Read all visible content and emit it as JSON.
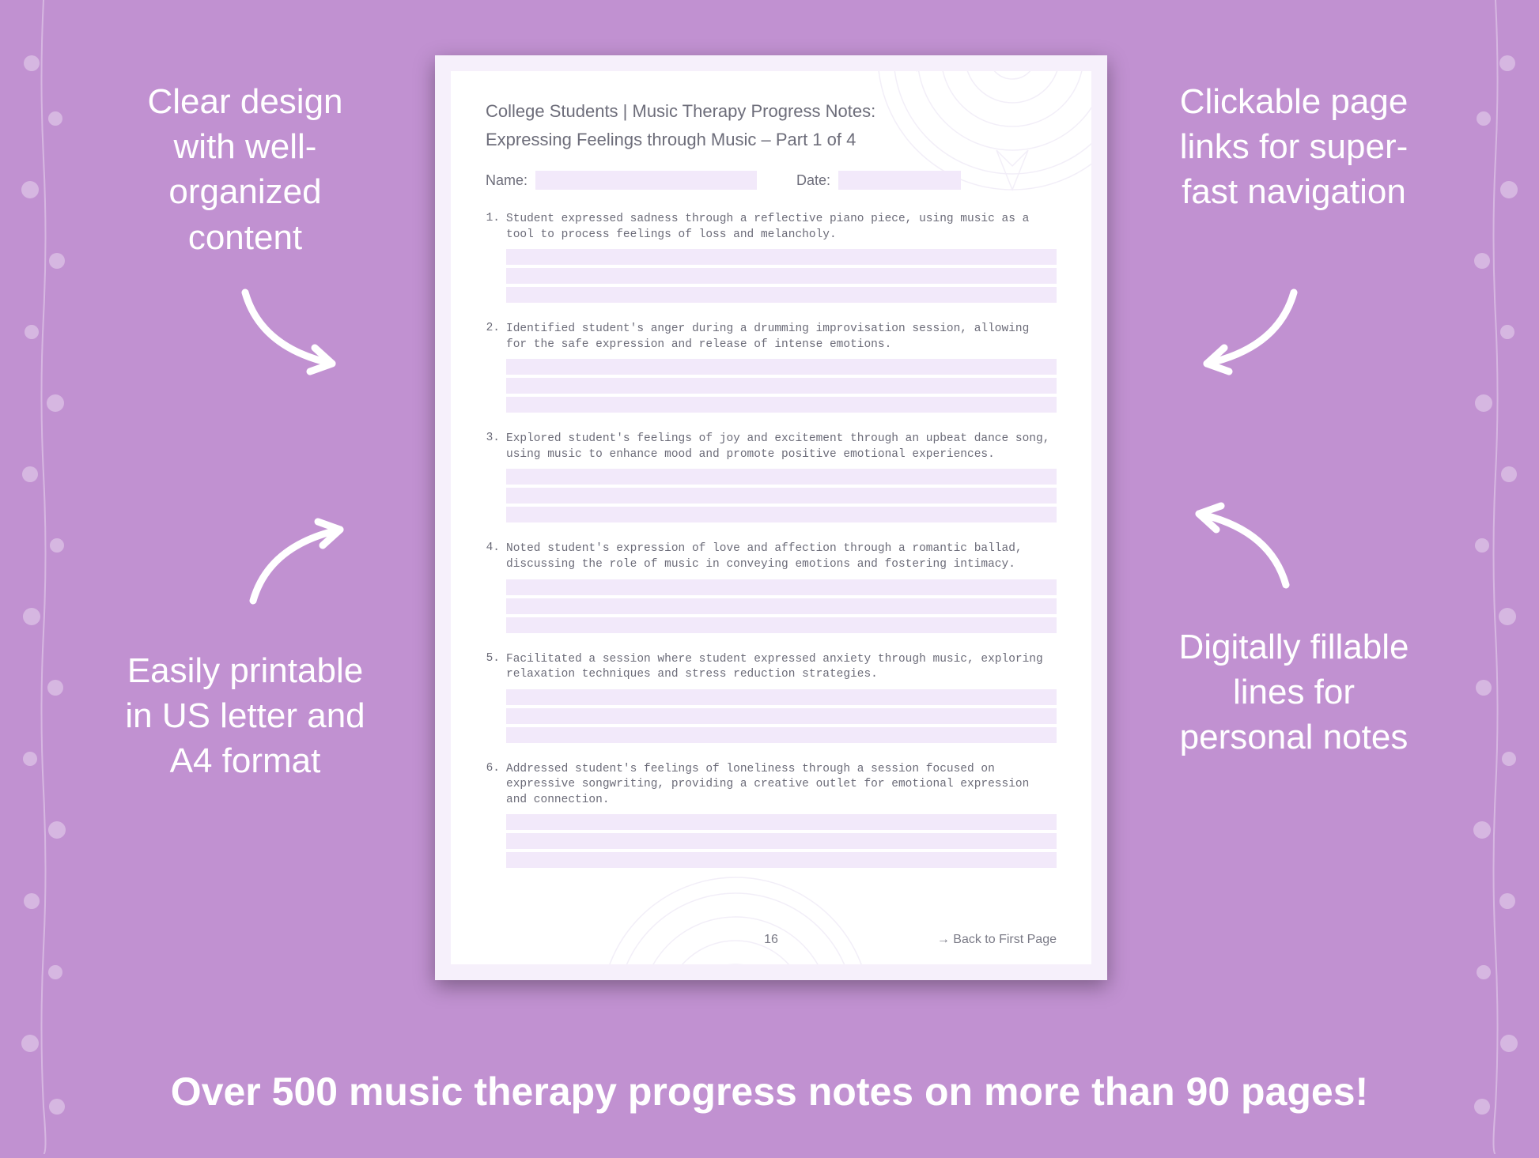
{
  "background_color": "#c191d1",
  "page_bg": "#f6f0fb",
  "page_inner_bg": "#ffffff",
  "field_fill": "#f2e9fa",
  "text_muted": "#6d6d7a",
  "mono_color": "#6b6b78",
  "callouts": {
    "top_left": "Clear design with well-organized content",
    "top_right": "Clickable page links for super-fast navigation",
    "bottom_left": "Easily printable in US letter and A4 format",
    "bottom_right": "Digitally fillable lines for personal notes"
  },
  "document": {
    "title": "College Students | Music Therapy Progress Notes:",
    "subtitle": "Expressing Feelings through Music – Part 1 of 4",
    "name_label": "Name:",
    "date_label": "Date:",
    "items": [
      {
        "num": "1.",
        "text": "Student expressed sadness through a reflective piano piece, using music as a tool to process feelings of loss and melancholy."
      },
      {
        "num": "2.",
        "text": "Identified student's anger during a drumming improvisation session, allowing for the safe expression and release of intense emotions."
      },
      {
        "num": "3.",
        "text": "Explored student's feelings of joy and excitement through an upbeat dance song, using music to enhance mood and promote positive emotional experiences."
      },
      {
        "num": "4.",
        "text": "Noted student's expression of love and affection through a romantic ballad, discussing the role of music in conveying emotions and fostering intimacy."
      },
      {
        "num": "5.",
        "text": "Facilitated a session where student expressed anxiety through music, exploring relaxation techniques and stress reduction strategies."
      },
      {
        "num": "6.",
        "text": "Addressed student's feelings of loneliness through a session focused on expressive songwriting, providing a creative outlet for emotional expression and connection."
      }
    ],
    "page_number": "16",
    "back_link": "→ Back to First Page"
  },
  "bottom_banner": "Over 500 music therapy progress notes on more than 90 pages!"
}
